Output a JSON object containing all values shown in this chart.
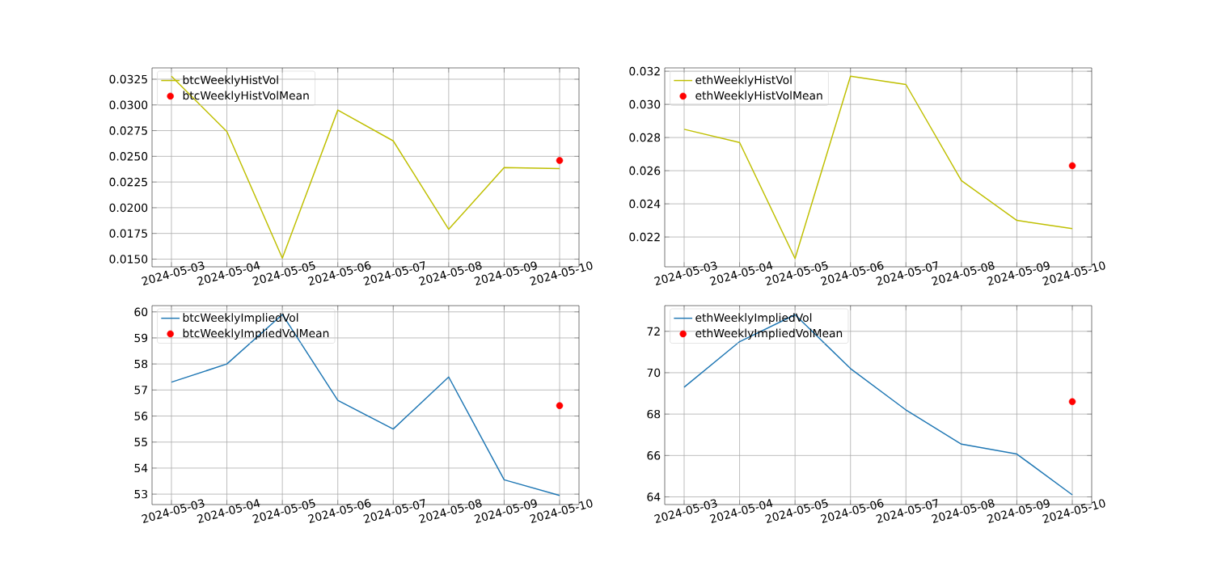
{
  "chart_data": [
    {
      "type": "line",
      "x": [
        "2024-05-03",
        "2024-05-04",
        "2024-05-05",
        "2024-05-06",
        "2024-05-07",
        "2024-05-08",
        "2024-05-09",
        "2024-05-10"
      ],
      "series": [
        {
          "name": "btcWeeklyHistVol",
          "color": "#bfbf00",
          "values": [
            0.0328,
            0.0274,
            0.0151,
            0.0295,
            0.0265,
            0.0179,
            0.0239,
            0.0238
          ]
        },
        {
          "name": "btcWeeklyHistVolMean",
          "type": "scatter",
          "color": "#ff0000",
          "x": [
            "2024-05-10"
          ],
          "values": [
            0.0246
          ]
        }
      ],
      "xlim": [
        "2024-05-02T15:36",
        "2024-05-10T08:24"
      ],
      "xticks": [
        "2024-05-03",
        "2024-05-04",
        "2024-05-05",
        "2024-05-06",
        "2024-05-07",
        "2024-05-08",
        "2024-05-09",
        "2024-05-10"
      ],
      "ylim": [
        0.01425,
        0.0336
      ],
      "yticks": [
        {
          "value": 0.015,
          "label": "0.0150"
        },
        0.0175,
        {
          "value": 0.02,
          "label": "0.0200"
        },
        0.0225,
        {
          "value": 0.025,
          "label": "0.0250"
        },
        0.0275,
        {
          "value": 0.03,
          "label": "0.0300"
        },
        0.0325
      ],
      "grid": true,
      "legend": "top left"
    },
    {
      "type": "line",
      "x": [
        "2024-05-03",
        "2024-05-04",
        "2024-05-05",
        "2024-05-06",
        "2024-05-07",
        "2024-05-08",
        "2024-05-09",
        "2024-05-10"
      ],
      "series": [
        {
          "name": "ethWeeklyHistVol",
          "color": "#bfbf00",
          "values": [
            0.0285,
            0.0277,
            0.0207,
            0.0317,
            0.0312,
            0.0254,
            0.023,
            0.0225
          ]
        },
        {
          "name": "ethWeeklyHistVolMean",
          "type": "scatter",
          "color": "#ff0000",
          "x": [
            "2024-05-10"
          ],
          "values": [
            0.0263
          ]
        }
      ],
      "xlim": [
        "2024-05-02T15:36",
        "2024-05-10T08:24"
      ],
      "xticks": [
        "2024-05-03",
        "2024-05-04",
        "2024-05-05",
        "2024-05-06",
        "2024-05-07",
        "2024-05-08",
        "2024-05-09",
        "2024-05-10"
      ],
      "ylim": [
        0.0202,
        0.0322
      ],
      "yticks": [
        0.022,
        0.024,
        0.026,
        0.028,
        {
          "value": 0.03,
          "label": "0.030"
        },
        0.032
      ],
      "grid": true,
      "legend": "top left"
    },
    {
      "type": "line",
      "x": [
        "2024-05-03",
        "2024-05-04",
        "2024-05-05",
        "2024-05-06",
        "2024-05-07",
        "2024-05-08",
        "2024-05-09",
        "2024-05-10"
      ],
      "series": [
        {
          "name": "btcWeeklyImpliedVol",
          "color": "#1f77b4",
          "values": [
            57.3,
            58.0,
            59.9,
            56.6,
            55.5,
            57.5,
            53.55,
            52.95
          ]
        },
        {
          "name": "btcWeeklyImpliedVolMean",
          "type": "scatter",
          "color": "#ff0000",
          "x": [
            "2024-05-10"
          ],
          "values": [
            56.4
          ]
        }
      ],
      "xlim": [
        "2024-05-02T15:36",
        "2024-05-10T08:24"
      ],
      "xticks": [
        "2024-05-03",
        "2024-05-04",
        "2024-05-05",
        "2024-05-06",
        "2024-05-07",
        "2024-05-08",
        "2024-05-09",
        "2024-05-10"
      ],
      "ylim": [
        52.6,
        60.24
      ],
      "yticks": [
        53,
        54,
        55,
        56,
        57,
        58,
        59,
        60
      ],
      "grid": true,
      "legend": "top left"
    },
    {
      "type": "line",
      "x": [
        "2024-05-03",
        "2024-05-04",
        "2024-05-05",
        "2024-05-06",
        "2024-05-07",
        "2024-05-08",
        "2024-05-09",
        "2024-05-10"
      ],
      "series": [
        {
          "name": "ethWeeklyImpliedVol",
          "color": "#1f77b4",
          "values": [
            69.3,
            71.5,
            72.8,
            70.2,
            68.2,
            66.55,
            66.07,
            64.1
          ]
        },
        {
          "name": "ethWeeklyImpliedVolMean",
          "type": "scatter",
          "color": "#ff0000",
          "x": [
            "2024-05-10"
          ],
          "values": [
            68.6
          ]
        }
      ],
      "xlim": [
        "2024-05-02T15:36",
        "2024-05-10T08:24"
      ],
      "xticks": [
        "2024-05-03",
        "2024-05-04",
        "2024-05-05",
        "2024-05-06",
        "2024-05-07",
        "2024-05-08",
        "2024-05-09",
        "2024-05-10"
      ],
      "ylim": [
        63.63,
        73.24
      ],
      "yticks": [
        64,
        66,
        68,
        70,
        72
      ],
      "grid": true,
      "legend": "top left"
    }
  ]
}
